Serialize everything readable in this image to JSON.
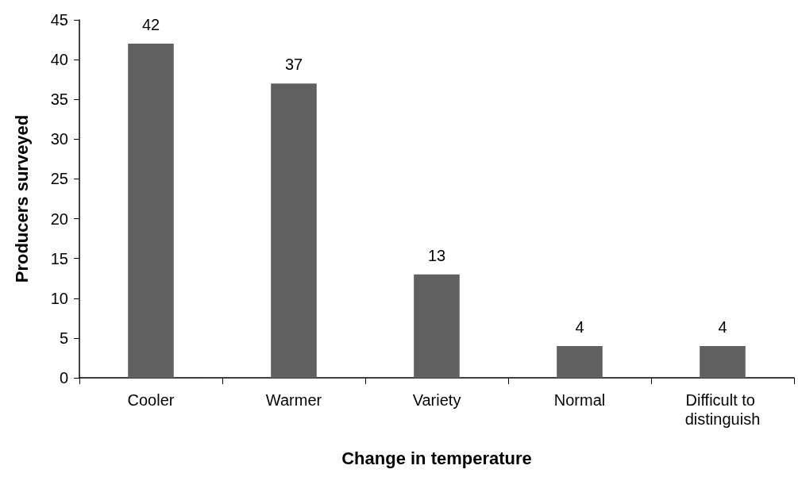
{
  "chart_data": {
    "type": "bar",
    "xlabel": "Change in temperature",
    "ylabel": "Producers surveyed",
    "categories": [
      "Cooler",
      "Warmer",
      "Variety",
      "Normal",
      "Difficult to distinguish"
    ],
    "values": [
      42,
      37,
      13,
      4,
      4
    ],
    "color": "#606060",
    "ylim": [
      0,
      45
    ],
    "yticks": [
      0,
      5,
      10,
      15,
      20,
      25,
      30,
      35,
      40,
      45
    ],
    "grid": false,
    "data_labels": true
  }
}
